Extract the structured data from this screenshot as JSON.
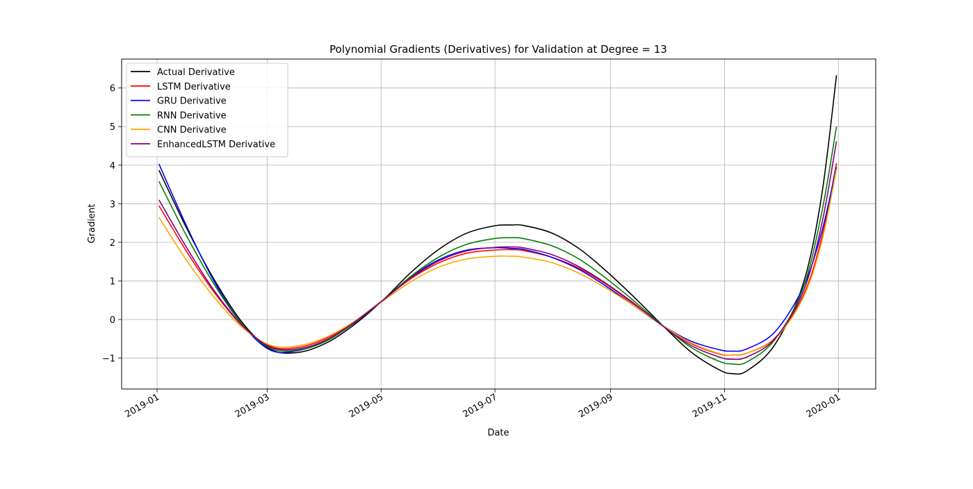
{
  "chart_data": {
    "type": "line",
    "title": "Polynomial Gradients (Derivatives) for Validation at Degree = 13",
    "xlabel": "Date",
    "ylabel": "Gradient",
    "x_axis_type": "date",
    "xlim": [
      "2018-12-13",
      "2020-01-21"
    ],
    "ylim": [
      -1.8,
      6.75
    ],
    "xticks": [
      "2019-01-01",
      "2019-03-01",
      "2019-05-01",
      "2019-07-01",
      "2019-09-01",
      "2019-11-01",
      "2020-01-01"
    ],
    "yticks": [
      -1,
      0,
      1,
      2,
      3,
      4,
      5,
      6
    ],
    "grid": true,
    "legend_position": "upper left",
    "series": [
      {
        "name": "Actual Derivative",
        "color": "#000000",
        "x": [
          "2019-01-02",
          "2019-01-17",
          "2019-02-01",
          "2019-02-16",
          "2019-03-03",
          "2019-03-18",
          "2019-04-02",
          "2019-04-17",
          "2019-05-02",
          "2019-05-17",
          "2019-06-01",
          "2019-06-16",
          "2019-07-01",
          "2019-07-10",
          "2019-07-16",
          "2019-07-31",
          "2019-08-15",
          "2019-08-30",
          "2019-09-14",
          "2019-09-29",
          "2019-10-14",
          "2019-10-29",
          "2019-11-05",
          "2019-11-13",
          "2019-11-28",
          "2019-12-13",
          "2019-12-23",
          "2019-12-31"
        ],
        "y": [
          3.87,
          2.35,
          1.0,
          -0.1,
          -0.78,
          -0.85,
          -0.6,
          -0.12,
          0.5,
          1.22,
          1.82,
          2.24,
          2.43,
          2.45,
          2.44,
          2.25,
          1.84,
          1.24,
          0.56,
          -0.16,
          -0.84,
          -1.3,
          -1.4,
          -1.33,
          -0.65,
          0.9,
          3.2,
          6.33
        ]
      },
      {
        "name": "LSTM Derivative",
        "color": "#ff0000",
        "x": [
          "2019-01-02",
          "2019-01-17",
          "2019-02-01",
          "2019-02-16",
          "2019-03-03",
          "2019-03-18",
          "2019-04-02",
          "2019-04-17",
          "2019-05-02",
          "2019-05-17",
          "2019-06-01",
          "2019-06-16",
          "2019-07-01",
          "2019-07-10",
          "2019-07-16",
          "2019-07-31",
          "2019-08-15",
          "2019-08-30",
          "2019-09-14",
          "2019-09-29",
          "2019-10-14",
          "2019-10-29",
          "2019-11-05",
          "2019-11-13",
          "2019-11-28",
          "2019-12-13",
          "2019-12-23",
          "2019-12-31"
        ],
        "y": [
          2.95,
          1.75,
          0.68,
          -0.18,
          -0.7,
          -0.72,
          -0.48,
          -0.04,
          0.5,
          1.06,
          1.47,
          1.72,
          1.8,
          1.81,
          1.79,
          1.62,
          1.33,
          0.9,
          0.38,
          -0.17,
          -0.62,
          -0.89,
          -0.92,
          -0.87,
          -0.48,
          0.6,
          2.1,
          4.05
        ]
      },
      {
        "name": "GRU Derivative",
        "color": "#0000ff",
        "x": [
          "2019-01-02",
          "2019-01-17",
          "2019-02-01",
          "2019-02-16",
          "2019-03-03",
          "2019-03-18",
          "2019-04-02",
          "2019-04-17",
          "2019-05-02",
          "2019-05-17",
          "2019-06-01",
          "2019-06-16",
          "2019-07-01",
          "2019-07-10",
          "2019-07-16",
          "2019-07-31",
          "2019-08-15",
          "2019-08-30",
          "2019-09-14",
          "2019-09-29",
          "2019-10-14",
          "2019-10-29",
          "2019-11-05",
          "2019-11-13",
          "2019-11-28",
          "2019-12-13",
          "2019-12-23",
          "2019-12-31"
        ],
        "y": [
          4.03,
          2.4,
          0.95,
          -0.15,
          -0.8,
          -0.8,
          -0.54,
          -0.08,
          0.5,
          1.1,
          1.55,
          1.8,
          1.86,
          1.84,
          1.82,
          1.62,
          1.3,
          0.85,
          0.34,
          -0.16,
          -0.56,
          -0.78,
          -0.82,
          -0.76,
          -0.32,
          0.82,
          2.25,
          3.95
        ]
      },
      {
        "name": "RNN Derivative",
        "color": "#008000",
        "x": [
          "2019-01-02",
          "2019-01-17",
          "2019-02-01",
          "2019-02-16",
          "2019-03-03",
          "2019-03-18",
          "2019-04-02",
          "2019-04-17",
          "2019-05-02",
          "2019-05-17",
          "2019-06-01",
          "2019-06-16",
          "2019-07-01",
          "2019-07-10",
          "2019-07-16",
          "2019-07-31",
          "2019-08-15",
          "2019-08-30",
          "2019-09-14",
          "2019-09-29",
          "2019-10-14",
          "2019-10-29",
          "2019-11-05",
          "2019-11-13",
          "2019-11-28",
          "2019-12-13",
          "2019-12-23",
          "2019-12-31"
        ],
        "y": [
          3.58,
          2.15,
          0.88,
          -0.15,
          -0.75,
          -0.79,
          -0.55,
          -0.07,
          0.5,
          1.12,
          1.62,
          1.95,
          2.1,
          2.12,
          2.1,
          1.92,
          1.57,
          1.05,
          0.46,
          -0.16,
          -0.72,
          -1.08,
          -1.15,
          -1.1,
          -0.52,
          0.8,
          2.75,
          5.0
        ]
      },
      {
        "name": "CNN Derivative",
        "color": "#ffa500",
        "x": [
          "2019-01-02",
          "2019-01-17",
          "2019-02-01",
          "2019-02-16",
          "2019-03-03",
          "2019-03-18",
          "2019-04-02",
          "2019-04-17",
          "2019-05-02",
          "2019-05-17",
          "2019-06-01",
          "2019-06-16",
          "2019-07-01",
          "2019-07-10",
          "2019-07-16",
          "2019-07-31",
          "2019-08-15",
          "2019-08-30",
          "2019-09-14",
          "2019-09-29",
          "2019-10-14",
          "2019-10-29",
          "2019-11-05",
          "2019-11-13",
          "2019-11-28",
          "2019-12-13",
          "2019-12-23",
          "2019-12-31"
        ],
        "y": [
          2.65,
          1.52,
          0.55,
          -0.22,
          -0.67,
          -0.68,
          -0.45,
          -0.04,
          0.48,
          0.98,
          1.36,
          1.57,
          1.64,
          1.64,
          1.62,
          1.48,
          1.2,
          0.8,
          0.34,
          -0.16,
          -0.6,
          -0.88,
          -0.92,
          -0.87,
          -0.5,
          0.55,
          2.0,
          3.9
        ]
      },
      {
        "name": "EnhancedLSTM Derivative",
        "color": "#800080",
        "x": [
          "2019-01-02",
          "2019-01-17",
          "2019-02-01",
          "2019-02-16",
          "2019-03-03",
          "2019-03-18",
          "2019-04-02",
          "2019-04-17",
          "2019-05-02",
          "2019-05-17",
          "2019-06-01",
          "2019-06-16",
          "2019-07-01",
          "2019-07-10",
          "2019-07-16",
          "2019-07-31",
          "2019-08-15",
          "2019-08-30",
          "2019-09-14",
          "2019-09-29",
          "2019-10-14",
          "2019-10-29",
          "2019-11-05",
          "2019-11-13",
          "2019-11-28",
          "2019-12-13",
          "2019-12-23",
          "2019-12-31"
        ],
        "y": [
          3.1,
          1.85,
          0.72,
          -0.17,
          -0.72,
          -0.76,
          -0.52,
          -0.06,
          0.5,
          1.08,
          1.52,
          1.78,
          1.87,
          1.88,
          1.86,
          1.69,
          1.37,
          0.92,
          0.4,
          -0.17,
          -0.67,
          -0.97,
          -1.03,
          -0.97,
          -0.5,
          0.7,
          2.45,
          4.62
        ]
      }
    ]
  }
}
